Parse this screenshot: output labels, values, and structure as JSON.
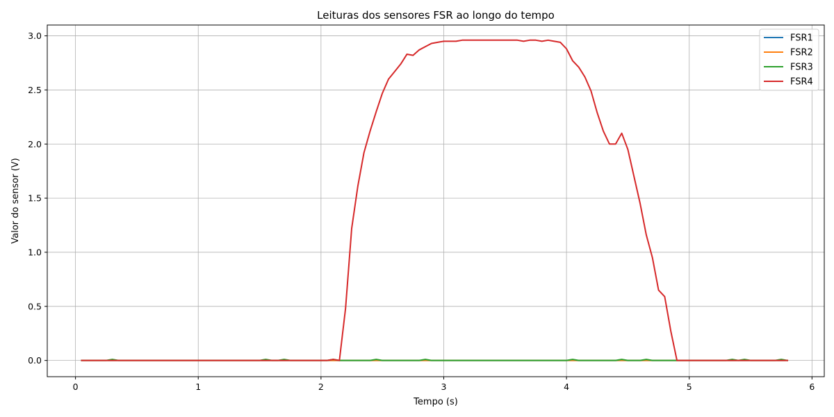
{
  "chart_data": {
    "type": "line",
    "title": "Leituras dos sensores FSR ao longo do tempo",
    "xlabel": "Tempo (s)",
    "ylabel": "Valor do sensor (V)",
    "xlim": [
      -0.23,
      6.1
    ],
    "ylim": [
      -0.15,
      3.1
    ],
    "xticks": [
      0,
      1,
      2,
      3,
      4,
      5,
      6
    ],
    "yticks": [
      0.0,
      0.5,
      1.0,
      1.5,
      2.0,
      2.5,
      3.0
    ],
    "xtick_labels": [
      "0",
      "1",
      "2",
      "3",
      "4",
      "5",
      "6"
    ],
    "ytick_labels": [
      "0.0",
      "0.5",
      "1.0",
      "1.5",
      "2.0",
      "2.5",
      "3.0"
    ],
    "grid": true,
    "legend_position": "top-right",
    "series": [
      {
        "name": "FSR1",
        "color": "#1f77b4",
        "x": [
          0.05,
          5.8
        ],
        "y": [
          0.0,
          0.0
        ]
      },
      {
        "name": "FSR2",
        "color": "#ff7f0e",
        "x": [
          0.05,
          5.8
        ],
        "y": [
          0.0,
          0.0
        ]
      },
      {
        "name": "FSR3",
        "color": "#2ca02c",
        "x": [
          0.05,
          0.25,
          0.3,
          0.35,
          1.5,
          1.55,
          1.6,
          1.65,
          1.7,
          1.75,
          2.05,
          2.1,
          2.15,
          2.4,
          2.45,
          2.5,
          2.8,
          2.85,
          2.9,
          4.0,
          4.05,
          4.1,
          4.4,
          4.45,
          4.5,
          4.6,
          4.65,
          4.7,
          5.3,
          5.35,
          5.4,
          5.45,
          5.5,
          5.7,
          5.75,
          5.8
        ],
        "y": [
          0.0,
          0.0,
          0.01,
          0.0,
          0.0,
          0.01,
          0.0,
          0.0,
          0.01,
          0.0,
          0.0,
          0.01,
          0.0,
          0.0,
          0.01,
          0.0,
          0.0,
          0.01,
          0.0,
          0.0,
          0.01,
          0.0,
          0.0,
          0.01,
          0.0,
          0.0,
          0.01,
          0.0,
          0.0,
          0.01,
          0.0,
          0.01,
          0.0,
          0.0,
          0.01,
          0.0
        ]
      },
      {
        "name": "FSR4",
        "color": "#d62728",
        "x": [
          0.05,
          2.05,
          2.1,
          2.15,
          2.2,
          2.25,
          2.3,
          2.35,
          2.4,
          2.45,
          2.5,
          2.55,
          2.6,
          2.65,
          2.7,
          2.75,
          2.8,
          2.85,
          2.9,
          2.95,
          3.0,
          3.05,
          3.1,
          3.15,
          3.2,
          3.3,
          3.4,
          3.5,
          3.6,
          3.65,
          3.7,
          3.75,
          3.8,
          3.85,
          3.9,
          3.95,
          4.0,
          4.05,
          4.1,
          4.15,
          4.2,
          4.25,
          4.3,
          4.35,
          4.4,
          4.45,
          4.5,
          4.55,
          4.6,
          4.65,
          4.7,
          4.75,
          4.8,
          4.85,
          4.9,
          5.8
        ],
        "y": [
          0.0,
          0.0,
          0.01,
          0.0,
          0.48,
          1.22,
          1.61,
          1.92,
          2.12,
          2.3,
          2.47,
          2.6,
          2.67,
          2.74,
          2.83,
          2.82,
          2.87,
          2.9,
          2.93,
          2.94,
          2.95,
          2.95,
          2.95,
          2.96,
          2.96,
          2.96,
          2.96,
          2.96,
          2.96,
          2.95,
          2.96,
          2.96,
          2.95,
          2.96,
          2.95,
          2.94,
          2.88,
          2.77,
          2.71,
          2.62,
          2.49,
          2.29,
          2.12,
          2.0,
          2.0,
          2.1,
          1.95,
          1.7,
          1.45,
          1.16,
          0.95,
          0.65,
          0.59,
          0.27,
          0.0,
          0.0
        ]
      }
    ]
  }
}
